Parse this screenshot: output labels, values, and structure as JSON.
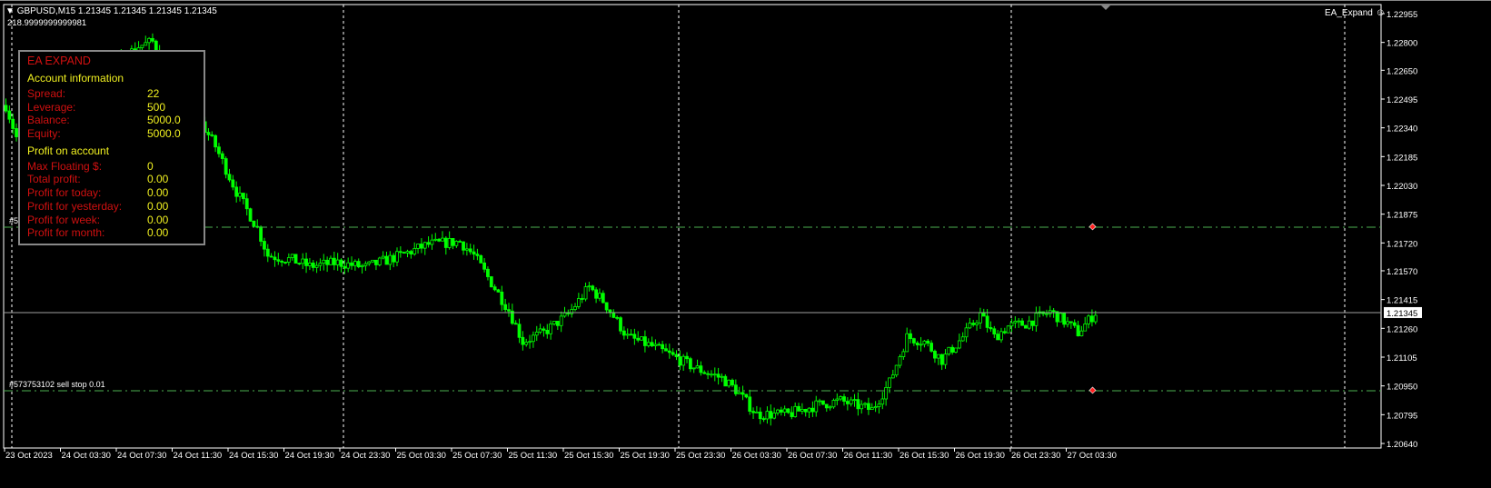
{
  "header": {
    "symbol_line": "GBPUSD,M15  1.21345 1.21345 1.21345 1.21345",
    "sub_value": "218.9999999999981",
    "expert_label": "EA_Expand",
    "expert_icon": "smiley-icon"
  },
  "panel": {
    "title": "EA EXPAND",
    "account_heading": "Account information",
    "account_rows": [
      {
        "label": "Spread:",
        "value": "22"
      },
      {
        "label": "Leverage:",
        "value": "500"
      },
      {
        "label": "Balance:",
        "value": "5000.0"
      },
      {
        "label": "Equity:",
        "value": "5000.0"
      }
    ],
    "profit_heading": "Profit on account",
    "profit_rows": [
      {
        "label": "Max Floating $:",
        "value": "0"
      },
      {
        "label": "Total profit:",
        "value": "0.00"
      },
      {
        "label": "Profit for today:",
        "value": "0.00"
      },
      {
        "label": "Profit for yesterday:",
        "value": "0.00"
      },
      {
        "label": "Profit for week:",
        "value": "0.00"
      },
      {
        "label": "Profit for month:",
        "value": "0.00"
      }
    ]
  },
  "colors": {
    "background": "#000000",
    "candle": "#00ff00",
    "order_line": "#4caf50",
    "label_red": "#d01010",
    "value_yellow": "#f0f020",
    "marker": "#ff2020"
  },
  "orders": [
    {
      "label": "#5",
      "price": 1.21805
    },
    {
      "label": "#573753102 sell stop 0.01",
      "price": 1.20924
    }
  ],
  "chart_data": {
    "type": "candlestick",
    "timeframe": "M15",
    "current_price": 1.21345,
    "current_price_label": "1.21345",
    "ylim": [
      1.2064,
      1.22955
    ],
    "y_ticks": [
      "1.22955",
      "1.22800",
      "1.22650",
      "1.22495",
      "1.22340",
      "1.22185",
      "1.22030",
      "1.21875",
      "1.21720",
      "1.21570",
      "1.21415",
      "1.21260",
      "1.21105",
      "1.20950",
      "1.20795",
      "1.20640"
    ],
    "x_ticks": [
      "23 Oct 2023",
      "24 Oct 03:30",
      "24 Oct 07:30",
      "24 Oct 11:30",
      "24 Oct 15:30",
      "24 Oct 19:30",
      "24 Oct 23:30",
      "25 Oct 03:30",
      "25 Oct 07:30",
      "25 Oct 11:30",
      "25 Oct 15:30",
      "25 Oct 19:30",
      "25 Oct 23:30",
      "26 Oct 03:30",
      "26 Oct 07:30",
      "26 Oct 11:30",
      "26 Oct 15:30",
      "26 Oct 19:30",
      "26 Oct 23:30",
      "27 Oct 03:30"
    ],
    "price_path": [
      {
        "t": "23 Oct 23:30",
        "p": 1.22461
      },
      {
        "t": "24 Oct 00:15",
        "p": 1.22289
      },
      {
        "t": "24 Oct 09:00",
        "p": 1.22779
      },
      {
        "t": "24 Oct 10:00",
        "p": 1.22803
      },
      {
        "t": "24 Oct 14:30",
        "p": 1.2224
      },
      {
        "t": "24 Oct 16:00",
        "p": 1.21996
      },
      {
        "t": "24 Oct 17:30",
        "p": 1.218
      },
      {
        "t": "24 Oct 18:15",
        "p": 1.21653
      },
      {
        "t": "24 Oct 20:00",
        "p": 1.21629
      },
      {
        "t": "24 Oct 21:15",
        "p": 1.21594
      },
      {
        "t": "24 Oct 23:15",
        "p": 1.21614
      },
      {
        "t": "25 Oct 01:15",
        "p": 1.21589
      },
      {
        "t": "25 Oct 03:45",
        "p": 1.21653
      },
      {
        "t": "25 Oct 05:45",
        "p": 1.21712
      },
      {
        "t": "25 Oct 08:00",
        "p": 1.21727
      },
      {
        "t": "25 Oct 09:00",
        "p": 1.21653
      },
      {
        "t": "25 Oct 10:15",
        "p": 1.21506
      },
      {
        "t": "25 Oct 11:30",
        "p": 1.21359
      },
      {
        "t": "25 Oct 12:30",
        "p": 1.21188
      },
      {
        "t": "25 Oct 14:00",
        "p": 1.21237
      },
      {
        "t": "25 Oct 15:45",
        "p": 1.21335
      },
      {
        "t": "25 Oct 17:15",
        "p": 1.21482
      },
      {
        "t": "25 Oct 18:15",
        "p": 1.21408
      },
      {
        "t": "25 Oct 20:00",
        "p": 1.21213
      },
      {
        "t": "25 Oct 21:45",
        "p": 1.21164
      },
      {
        "t": "25 Oct 23:45",
        "p": 1.2109
      },
      {
        "t": "26 Oct 01:00",
        "p": 1.21041
      },
      {
        "t": "26 Oct 02:45",
        "p": 1.20992
      },
      {
        "t": "26 Oct 03:45",
        "p": 1.20929
      },
      {
        "t": "26 Oct 05:15",
        "p": 1.20797
      },
      {
        "t": "26 Oct 07:30",
        "p": 1.20797
      },
      {
        "t": "26 Oct 09:30",
        "p": 1.20846
      },
      {
        "t": "26 Oct 11:15",
        "p": 1.2087
      },
      {
        "t": "26 Oct 13:30",
        "p": 1.20821
      },
      {
        "t": "26 Oct 14:45",
        "p": 1.20968
      },
      {
        "t": "26 Oct 16:00",
        "p": 1.21213
      },
      {
        "t": "26 Oct 17:15",
        "p": 1.21188
      },
      {
        "t": "26 Oct 18:30",
        "p": 1.2109
      },
      {
        "t": "26 Oct 20:00",
        "p": 1.21213
      },
      {
        "t": "26 Oct 21:15",
        "p": 1.21335
      },
      {
        "t": "26 Oct 22:15",
        "p": 1.21213
      },
      {
        "t": "26 Oct 23:15",
        "p": 1.21271
      },
      {
        "t": "27 Oct 00:30",
        "p": 1.21286
      },
      {
        "t": "27 Oct 02:15",
        "p": 1.2135
      },
      {
        "t": "27 Oct 03:30",
        "p": 1.21286
      },
      {
        "t": "27 Oct 04:15",
        "p": 1.21237
      },
      {
        "t": "27 Oct 05:30",
        "p": 1.21345
      }
    ],
    "grid": false,
    "period_separators": true
  }
}
